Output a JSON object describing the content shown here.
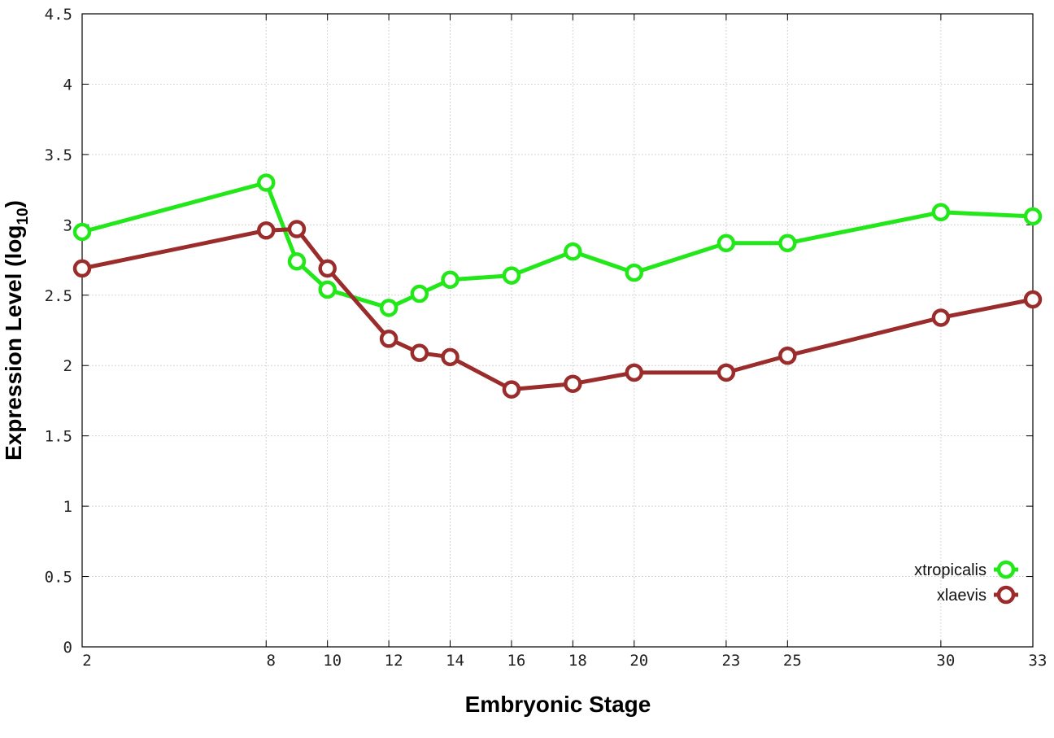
{
  "chart_data": {
    "type": "line",
    "title": "",
    "xlabel": "Embryonic Stage",
    "ylabel_main": "Expression Level (log",
    "ylabel_sub": "10",
    "ylabel_close": ")",
    "x": [
      2,
      8,
      9,
      10,
      12,
      13,
      14,
      16,
      18,
      20,
      23,
      25,
      30,
      33
    ],
    "x_ticks": [
      2,
      8,
      10,
      12,
      14,
      16,
      18,
      20,
      23,
      25,
      30,
      33
    ],
    "x_tick_labels": [
      "2",
      "8",
      "10",
      "12",
      "14",
      "16",
      "18",
      "20",
      "23",
      "25",
      "30",
      "33"
    ],
    "xlim": [
      2,
      33
    ],
    "ylim": [
      0,
      4.5
    ],
    "y_ticks": [
      0,
      0.5,
      1,
      1.5,
      2,
      2.5,
      3,
      3.5,
      4,
      4.5
    ],
    "y_tick_labels": [
      "0",
      "0.5",
      "1",
      "1.5",
      "2",
      "2.5",
      "3",
      "3.5",
      "4",
      "4.5"
    ],
    "grid": true,
    "legend_position": "bottom-right",
    "series": [
      {
        "name": "xtropicalis",
        "color": "#22e81a",
        "values": [
          2.95,
          3.3,
          2.74,
          2.54,
          2.41,
          2.51,
          2.61,
          2.64,
          2.81,
          2.66,
          2.87,
          2.87,
          3.09,
          3.06
        ]
      },
      {
        "name": "xlaevis",
        "color": "#9b2c2c",
        "values": [
          2.69,
          2.96,
          2.97,
          2.69,
          2.19,
          2.09,
          2.06,
          1.83,
          1.87,
          1.95,
          1.95,
          2.07,
          2.34,
          2.47
        ]
      }
    ]
  }
}
